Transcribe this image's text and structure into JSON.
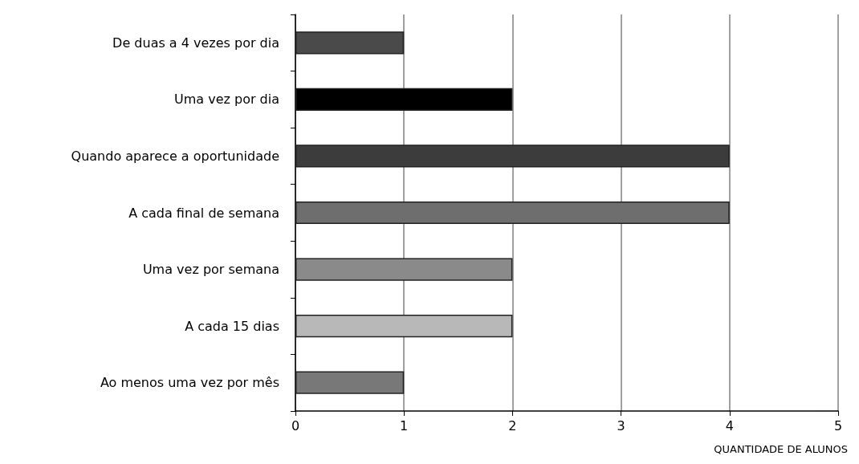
{
  "chart_data": {
    "type": "bar",
    "orientation": "horizontal",
    "xlabel": "QUANTIDADE DE ALUNOS",
    "categories": [
      "De duas a 4 vezes por dia",
      "Uma vez por dia",
      "Quando aparece a oportunidade",
      "A cada final de semana",
      "Uma vez por semana",
      "A cada 15 dias",
      "Ao menos uma vez por mês"
    ],
    "values": [
      1,
      2,
      4,
      4,
      2,
      2,
      1
    ],
    "colors": [
      "#4a4a4a",
      "#000000",
      "#3c3c3c",
      "#6e6e6e",
      "#8a8a8a",
      "#b8b8b8",
      "#787878"
    ],
    "xlim": [
      0,
      5
    ],
    "xticks": [
      0,
      1,
      2,
      3,
      4,
      5
    ],
    "grid": "x"
  }
}
